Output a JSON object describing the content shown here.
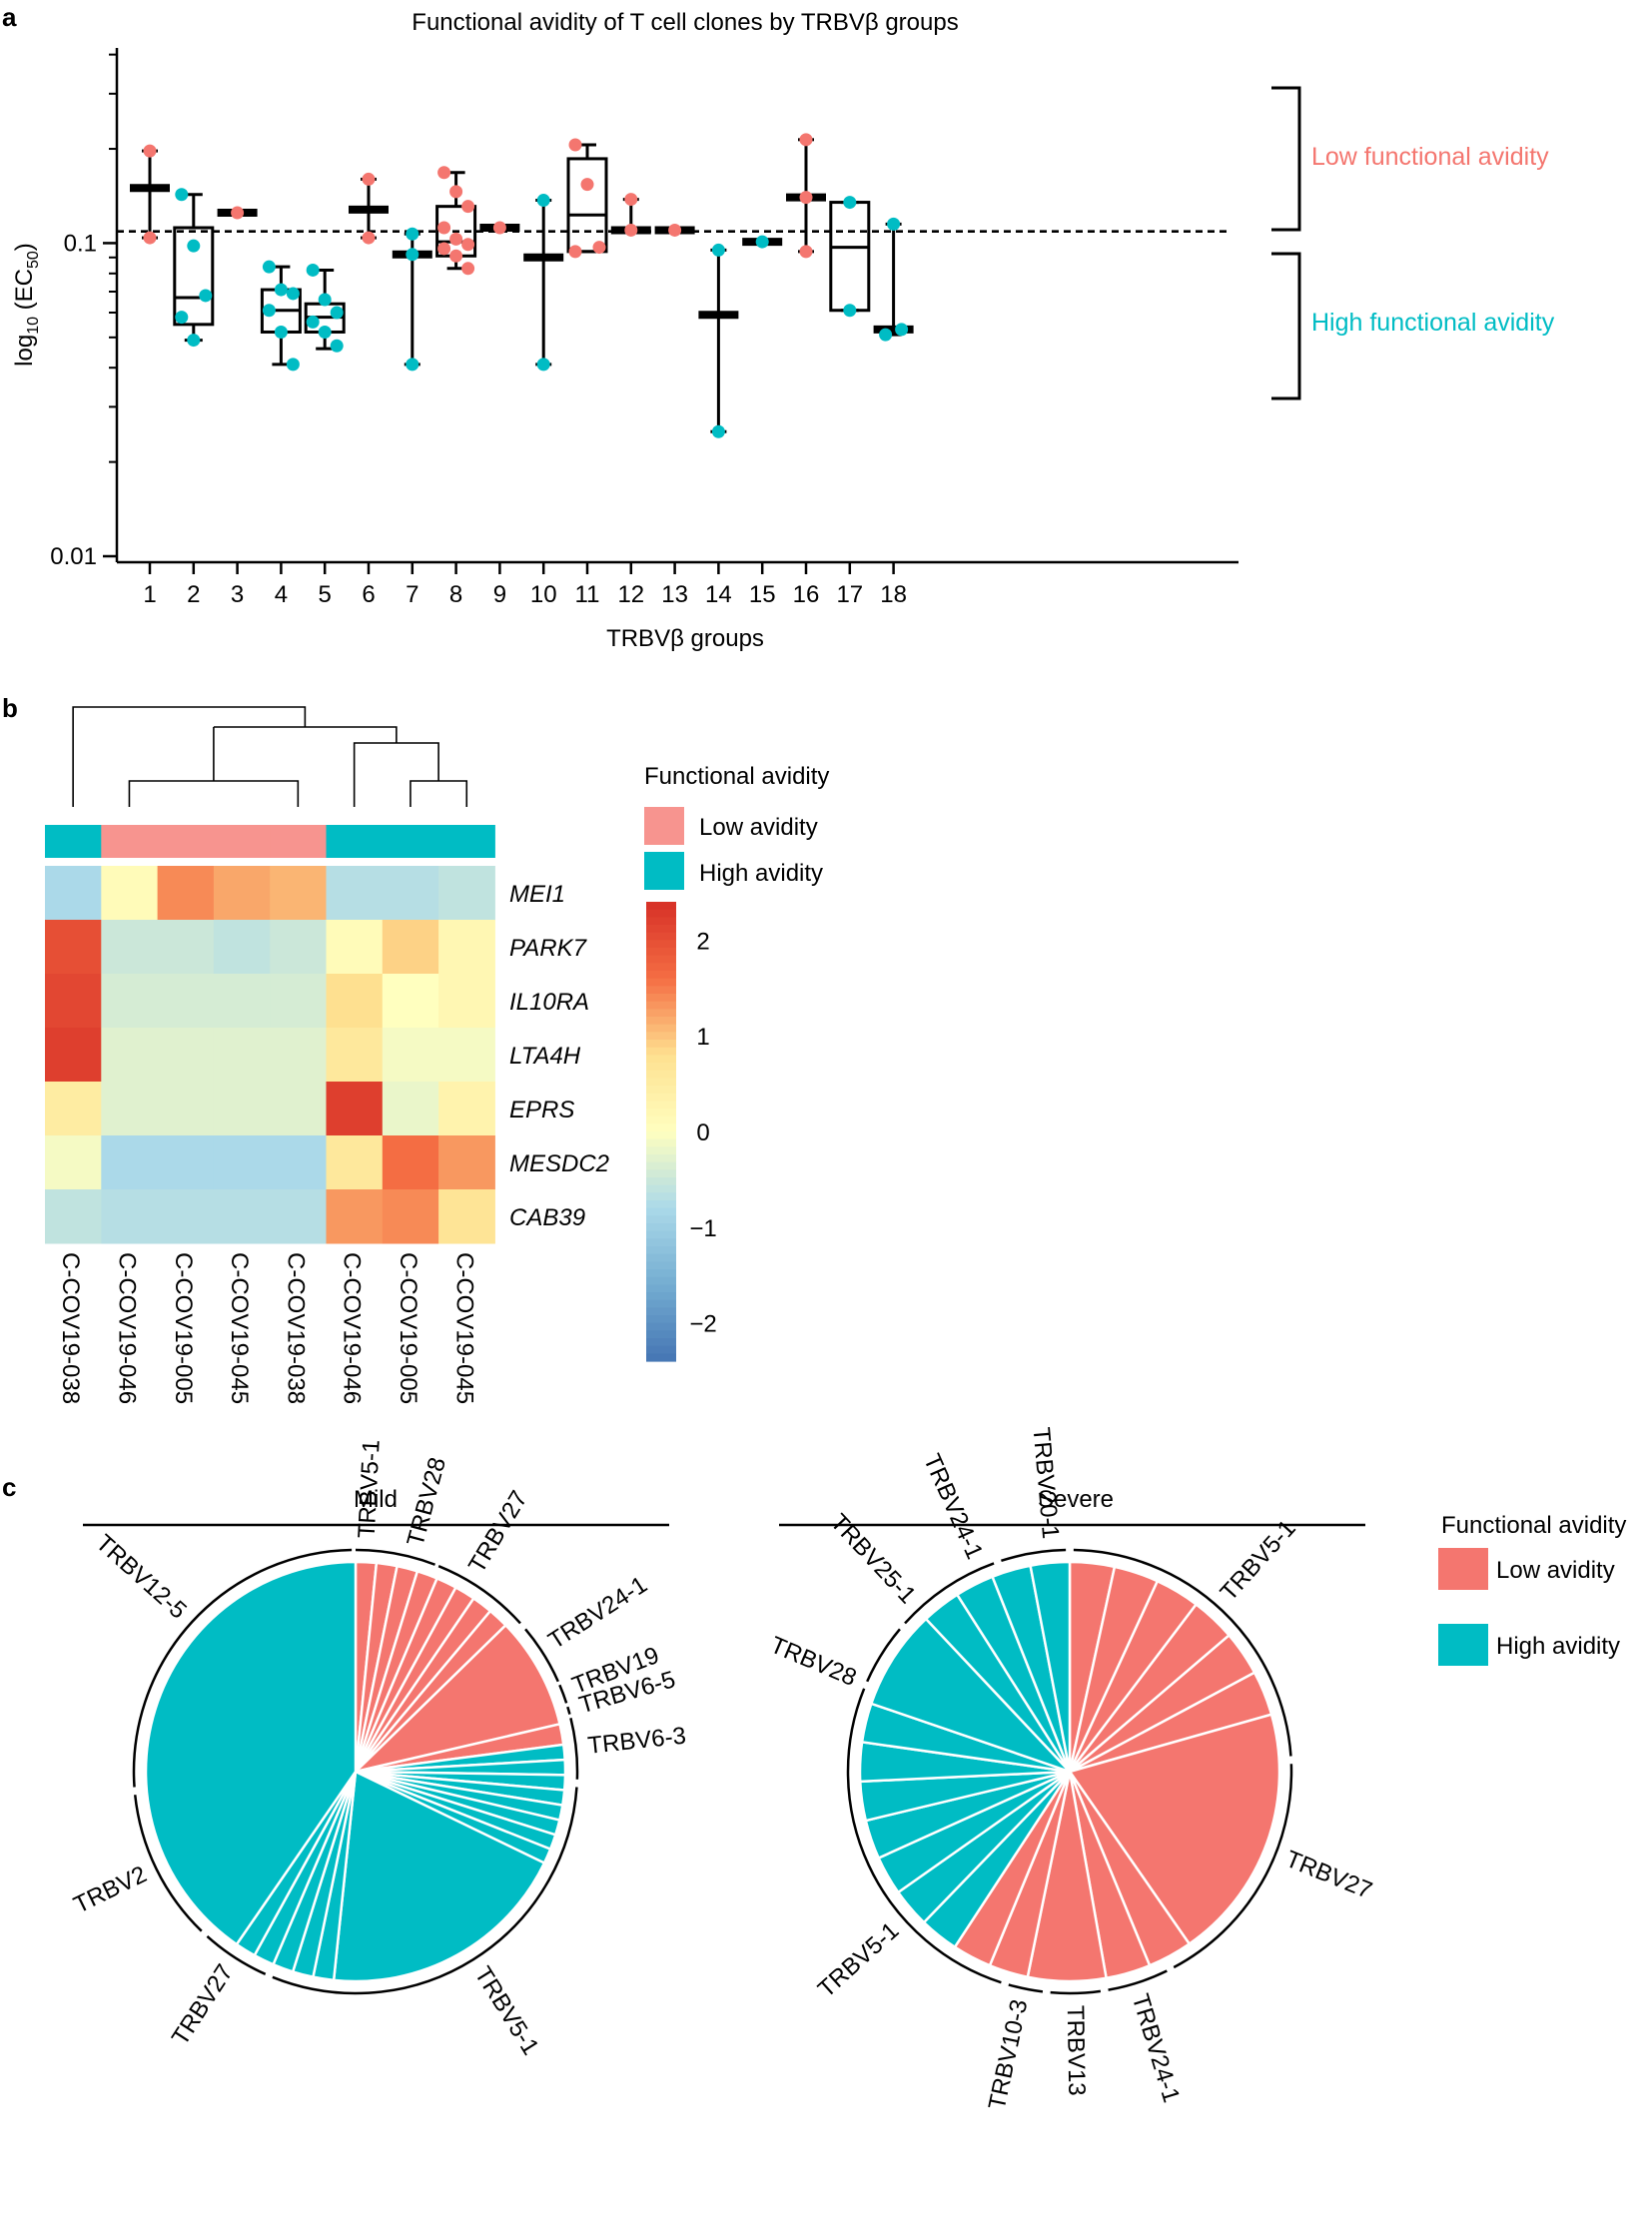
{
  "colors": {
    "low": "#F4766F",
    "high": "#00BCC4",
    "heat_low_band": "#F7948F",
    "axis": "#000000"
  },
  "chart_data": [
    {
      "panel": "a",
      "type": "box-scatter",
      "title": "Functional avidity of T cell clones by TRBVβ groups",
      "xlabel": "TRBVβ groups",
      "ylabel": "log10 (EC50)",
      "ylabel_parts": {
        "prefix": "log",
        "sub1": "10",
        "mid": " (EC",
        "sub2": "50",
        "suffix": ")"
      },
      "yscale": "log",
      "ylim": [
        0.01,
        0.42
      ],
      "yticks": [
        {
          "v": 0.01,
          "label": "0.01"
        },
        {
          "v": 0.1,
          "label": "0.1"
        }
      ],
      "threshold": 0.109,
      "annotations": {
        "low": "Low functional avidity",
        "high": "High functional avidity"
      },
      "groups": [
        {
          "label": "1",
          "type": "line",
          "center": 0.15,
          "min": 0.104,
          "max": 0.197,
          "points": [
            {
              "v": 0.197,
              "c": "low"
            },
            {
              "v": 0.104,
              "c": "low"
            }
          ]
        },
        {
          "label": "2",
          "type": "box",
          "q1": 0.055,
          "median": 0.067,
          "q3": 0.112,
          "min": 0.049,
          "max": 0.143,
          "points": [
            {
              "v": 0.143,
              "c": "high"
            },
            {
              "v": 0.098,
              "c": "high"
            },
            {
              "v": 0.068,
              "c": "high"
            },
            {
              "v": 0.058,
              "c": "high"
            },
            {
              "v": 0.049,
              "c": "high"
            }
          ]
        },
        {
          "label": "3",
          "type": "line",
          "center": 0.125,
          "min": 0.125,
          "max": 0.125,
          "points": [
            {
              "v": 0.125,
              "c": "low"
            }
          ]
        },
        {
          "label": "4",
          "type": "box",
          "q1": 0.052,
          "median": 0.061,
          "q3": 0.071,
          "min": 0.041,
          "max": 0.084,
          "points": [
            {
              "v": 0.084,
              "c": "high"
            },
            {
              "v": 0.071,
              "c": "high"
            },
            {
              "v": 0.069,
              "c": "high"
            },
            {
              "v": 0.061,
              "c": "high"
            },
            {
              "v": 0.052,
              "c": "high"
            },
            {
              "v": 0.041,
              "c": "high"
            }
          ]
        },
        {
          "label": "5",
          "type": "box",
          "q1": 0.052,
          "median": 0.058,
          "q3": 0.064,
          "min": 0.046,
          "max": 0.082,
          "points": [
            {
              "v": 0.082,
              "c": "high"
            },
            {
              "v": 0.066,
              "c": "high"
            },
            {
              "v": 0.06,
              "c": "high"
            },
            {
              "v": 0.056,
              "c": "high"
            },
            {
              "v": 0.052,
              "c": "high"
            },
            {
              "v": 0.047,
              "c": "high"
            }
          ]
        },
        {
          "label": "6",
          "type": "line",
          "center": 0.128,
          "min": 0.104,
          "max": 0.16,
          "points": [
            {
              "v": 0.16,
              "c": "low"
            },
            {
              "v": 0.104,
              "c": "low"
            }
          ]
        },
        {
          "label": "7",
          "type": "line",
          "center": 0.092,
          "min": 0.041,
          "max": 0.107,
          "points": [
            {
              "v": 0.107,
              "c": "high"
            },
            {
              "v": 0.092,
              "c": "high"
            },
            {
              "v": 0.041,
              "c": "high"
            }
          ]
        },
        {
          "label": "8",
          "type": "box",
          "q1": 0.091,
          "median": 0.101,
          "q3": 0.131,
          "min": 0.083,
          "max": 0.168,
          "points": [
            {
              "v": 0.168,
              "c": "low"
            },
            {
              "v": 0.146,
              "c": "low"
            },
            {
              "v": 0.131,
              "c": "low"
            },
            {
              "v": 0.112,
              "c": "low"
            },
            {
              "v": 0.103,
              "c": "low"
            },
            {
              "v": 0.099,
              "c": "low"
            },
            {
              "v": 0.096,
              "c": "low"
            },
            {
              "v": 0.091,
              "c": "low"
            },
            {
              "v": 0.083,
              "c": "low"
            }
          ]
        },
        {
          "label": "9",
          "type": "line",
          "center": 0.112,
          "min": 0.112,
          "max": 0.112,
          "points": [
            {
              "v": 0.112,
              "c": "low"
            }
          ]
        },
        {
          "label": "10",
          "type": "line",
          "center": 0.09,
          "min": 0.041,
          "max": 0.137,
          "points": [
            {
              "v": 0.137,
              "c": "high"
            },
            {
              "v": 0.041,
              "c": "high"
            }
          ]
        },
        {
          "label": "11",
          "type": "box",
          "q1": 0.094,
          "median": 0.123,
          "q3": 0.186,
          "min": 0.094,
          "max": 0.206,
          "points": [
            {
              "v": 0.206,
              "c": "low"
            },
            {
              "v": 0.154,
              "c": "low"
            },
            {
              "v": 0.097,
              "c": "low"
            },
            {
              "v": 0.094,
              "c": "low"
            }
          ]
        },
        {
          "label": "12",
          "type": "line",
          "center": 0.11,
          "min": 0.11,
          "max": 0.138,
          "points": [
            {
              "v": 0.138,
              "c": "low"
            },
            {
              "v": 0.11,
              "c": "low"
            }
          ]
        },
        {
          "label": "13",
          "type": "line",
          "center": 0.11,
          "min": 0.11,
          "max": 0.11,
          "points": [
            {
              "v": 0.11,
              "c": "low"
            }
          ]
        },
        {
          "label": "14",
          "type": "line",
          "center": 0.059,
          "min": 0.025,
          "max": 0.095,
          "points": [
            {
              "v": 0.095,
              "c": "high"
            },
            {
              "v": 0.025,
              "c": "high"
            }
          ]
        },
        {
          "label": "15",
          "type": "line",
          "center": 0.101,
          "min": 0.101,
          "max": 0.101,
          "points": [
            {
              "v": 0.101,
              "c": "high"
            }
          ]
        },
        {
          "label": "16",
          "type": "line",
          "center": 0.14,
          "min": 0.094,
          "max": 0.214,
          "points": [
            {
              "v": 0.214,
              "c": "low"
            },
            {
              "v": 0.14,
              "c": "low"
            },
            {
              "v": 0.094,
              "c": "low"
            }
          ]
        },
        {
          "label": "17",
          "type": "box",
          "q1": 0.061,
          "median": 0.097,
          "q3": 0.135,
          "min": 0.061,
          "max": 0.135,
          "points": [
            {
              "v": 0.135,
              "c": "high"
            },
            {
              "v": 0.061,
              "c": "high"
            }
          ]
        },
        {
          "label": "18",
          "type": "line",
          "center": 0.053,
          "min": 0.051,
          "max": 0.115,
          "points": [
            {
              "v": 0.115,
              "c": "high"
            },
            {
              "v": 0.053,
              "c": "high"
            },
            {
              "v": 0.051,
              "c": "high"
            }
          ]
        }
      ]
    },
    {
      "panel": "b",
      "type": "heatmap",
      "rows": [
        "MEI1",
        "PARK7",
        "IL10RA",
        "LTA4H",
        "EPRS",
        "MESDC2",
        "CAB39"
      ],
      "columns": [
        "C-COV19-038",
        "C-COV19-046",
        "C-COV19-005",
        "C-COV19-045",
        "C-COV19-038",
        "C-COV19-046",
        "C-COV19-005",
        "C-COV19-045"
      ],
      "column_avidity": [
        "high",
        "low",
        "low",
        "low",
        "low",
        "high",
        "high",
        "high"
      ],
      "values": [
        [
          -0.8,
          0.1,
          1.4,
          1.2,
          1.1,
          -0.7,
          -0.7,
          -0.6
        ],
        [
          2.0,
          -0.5,
          -0.5,
          -0.6,
          -0.5,
          0.1,
          0.9,
          0.2
        ],
        [
          2.1,
          -0.4,
          -0.4,
          -0.4,
          -0.4,
          0.8,
          0.0,
          0.2
        ],
        [
          2.2,
          -0.3,
          -0.3,
          -0.3,
          -0.3,
          0.6,
          -0.1,
          -0.1
        ],
        [
          0.5,
          -0.3,
          -0.3,
          -0.3,
          -0.3,
          2.2,
          -0.2,
          0.3
        ],
        [
          -0.1,
          -0.8,
          -0.8,
          -0.8,
          -0.8,
          0.6,
          1.6,
          1.3
        ],
        [
          -0.6,
          -0.7,
          -0.7,
          -0.7,
          -0.7,
          1.3,
          1.4,
          0.7
        ]
      ],
      "colorscale_ticks": [
        "2",
        "1",
        "0",
        "−1",
        "−2"
      ],
      "colorscale_range": [
        -2.4,
        2.4
      ],
      "legend_title": "Functional avidity",
      "legend_items": [
        {
          "label": "Low avidity",
          "c": "low"
        },
        {
          "label": "High avidity",
          "c": "high"
        }
      ]
    },
    {
      "panel": "c",
      "type": "pie",
      "legend_title": "Functional avidity",
      "legend_items": [
        {
          "label": "Low avidity",
          "c": "low"
        },
        {
          "label": "High avidity",
          "c": "high"
        }
      ],
      "pies": [
        {
          "title": "Mild",
          "slices": [
            {
              "c": "low",
              "v": 2.2
            },
            {
              "c": "low",
              "v": 2.2
            },
            {
              "c": "low",
              "v": 2.2
            },
            {
              "c": "low",
              "v": 2.2
            },
            {
              "c": "low",
              "v": 2.2
            },
            {
              "c": "low",
              "v": 2.2
            },
            {
              "c": "low",
              "v": 2.2
            },
            {
              "c": "low",
              "v": 2.2
            },
            {
              "c": "low",
              "v": 12
            },
            {
              "c": "low",
              "v": 2.2
            },
            {
              "c": "high",
              "v": 1.6
            },
            {
              "c": "high",
              "v": 1.6
            },
            {
              "c": "high",
              "v": 1.6
            },
            {
              "c": "high",
              "v": 1.6
            },
            {
              "c": "high",
              "v": 1.6
            },
            {
              "c": "high",
              "v": 1.6
            },
            {
              "c": "high",
              "v": 1.6
            },
            {
              "c": "high",
              "v": 1.6
            },
            {
              "c": "high",
              "v": 27
            },
            {
              "c": "high",
              "v": 2.2
            },
            {
              "c": "high",
              "v": 2.2
            },
            {
              "c": "high",
              "v": 2.2
            },
            {
              "c": "high",
              "v": 2.2
            },
            {
              "c": "high",
              "v": 2.2
            },
            {
              "c": "high",
              "v": 56
            }
          ],
          "arcs": [
            [
              0,
              21
            ],
            [
              22,
              48
            ],
            [
              50,
              66
            ],
            [
              67,
              72
            ],
            [
              73,
              75
            ],
            [
              76,
              92
            ],
            [
              94,
              202
            ],
            [
              204,
              222
            ],
            [
              224,
              264
            ],
            [
              266,
              359
            ]
          ],
          "labels": [
            {
              "text": "TRBV5-1",
              "deg": 3
            },
            {
              "text": "TRBV28",
              "deg": 15
            },
            {
              "text": "TRBV27",
              "deg": 31
            },
            {
              "text": "TRBV24-1",
              "deg": 57
            },
            {
              "text": "TRBV19",
              "deg": 69
            },
            {
              "text": "TRBV6-5",
              "deg": 74
            },
            {
              "text": "TRBV6-3",
              "deg": 84
            },
            {
              "text": "TRBV5-1",
              "deg": 148
            },
            {
              "text": "TRBV27",
              "deg": 213
            },
            {
              "text": "TRBV2",
              "deg": 244
            },
            {
              "text": "TRBV12-5",
              "deg": 312
            }
          ]
        },
        {
          "title": "Severe",
          "slices": [
            {
              "c": "low",
              "v": 4
            },
            {
              "c": "low",
              "v": 4
            },
            {
              "c": "low",
              "v": 4
            },
            {
              "c": "low",
              "v": 4
            },
            {
              "c": "low",
              "v": 4
            },
            {
              "c": "low",
              "v": 4
            },
            {
              "c": "low",
              "v": 23
            },
            {
              "c": "low",
              "v": 4
            },
            {
              "c": "low",
              "v": 4
            },
            {
              "c": "low",
              "v": 7
            },
            {
              "c": "low",
              "v": 3.5
            },
            {
              "c": "low",
              "v": 3.5
            },
            {
              "c": "high",
              "v": 3.5
            },
            {
              "c": "high",
              "v": 3.5
            },
            {
              "c": "high",
              "v": 3.5
            },
            {
              "c": "high",
              "v": 3.5
            },
            {
              "c": "high",
              "v": 3.5
            },
            {
              "c": "high",
              "v": 3.5
            },
            {
              "c": "high",
              "v": 3.5
            },
            {
              "c": "high",
              "v": 9
            },
            {
              "c": "high",
              "v": 3.5
            },
            {
              "c": "high",
              "v": 3.5
            },
            {
              "c": "high",
              "v": 3.5
            },
            {
              "c": "high",
              "v": 3.5
            }
          ],
          "arcs": [
            [
              1,
              86
            ],
            [
              88,
              152
            ],
            [
              154,
              170
            ],
            [
              172,
              185
            ],
            [
              187,
              196
            ],
            [
              198,
              292
            ],
            [
              294,
              310
            ],
            [
              312,
              340
            ],
            [
              342,
              359
            ]
          ],
          "labels": [
            {
              "text": "TRBV5-1",
              "deg": 42
            },
            {
              "text": "TRBV27",
              "deg": 112
            },
            {
              "text": "TRBV24-1",
              "deg": 163
            },
            {
              "text": "TRBV13",
              "deg": 179
            },
            {
              "text": "TRBV10-3",
              "deg": 192
            },
            {
              "text": "TRBV5-1",
              "deg": 228
            },
            {
              "text": "TRBV28",
              "deg": 293
            },
            {
              "text": "TRBV25-1",
              "deg": 317
            },
            {
              "text": "TRBV24-1",
              "deg": 336
            },
            {
              "text": "TRBV20-1",
              "deg": 355
            }
          ]
        }
      ]
    }
  ],
  "panel_labels": {
    "a": "a",
    "b": "b",
    "c": "c"
  }
}
